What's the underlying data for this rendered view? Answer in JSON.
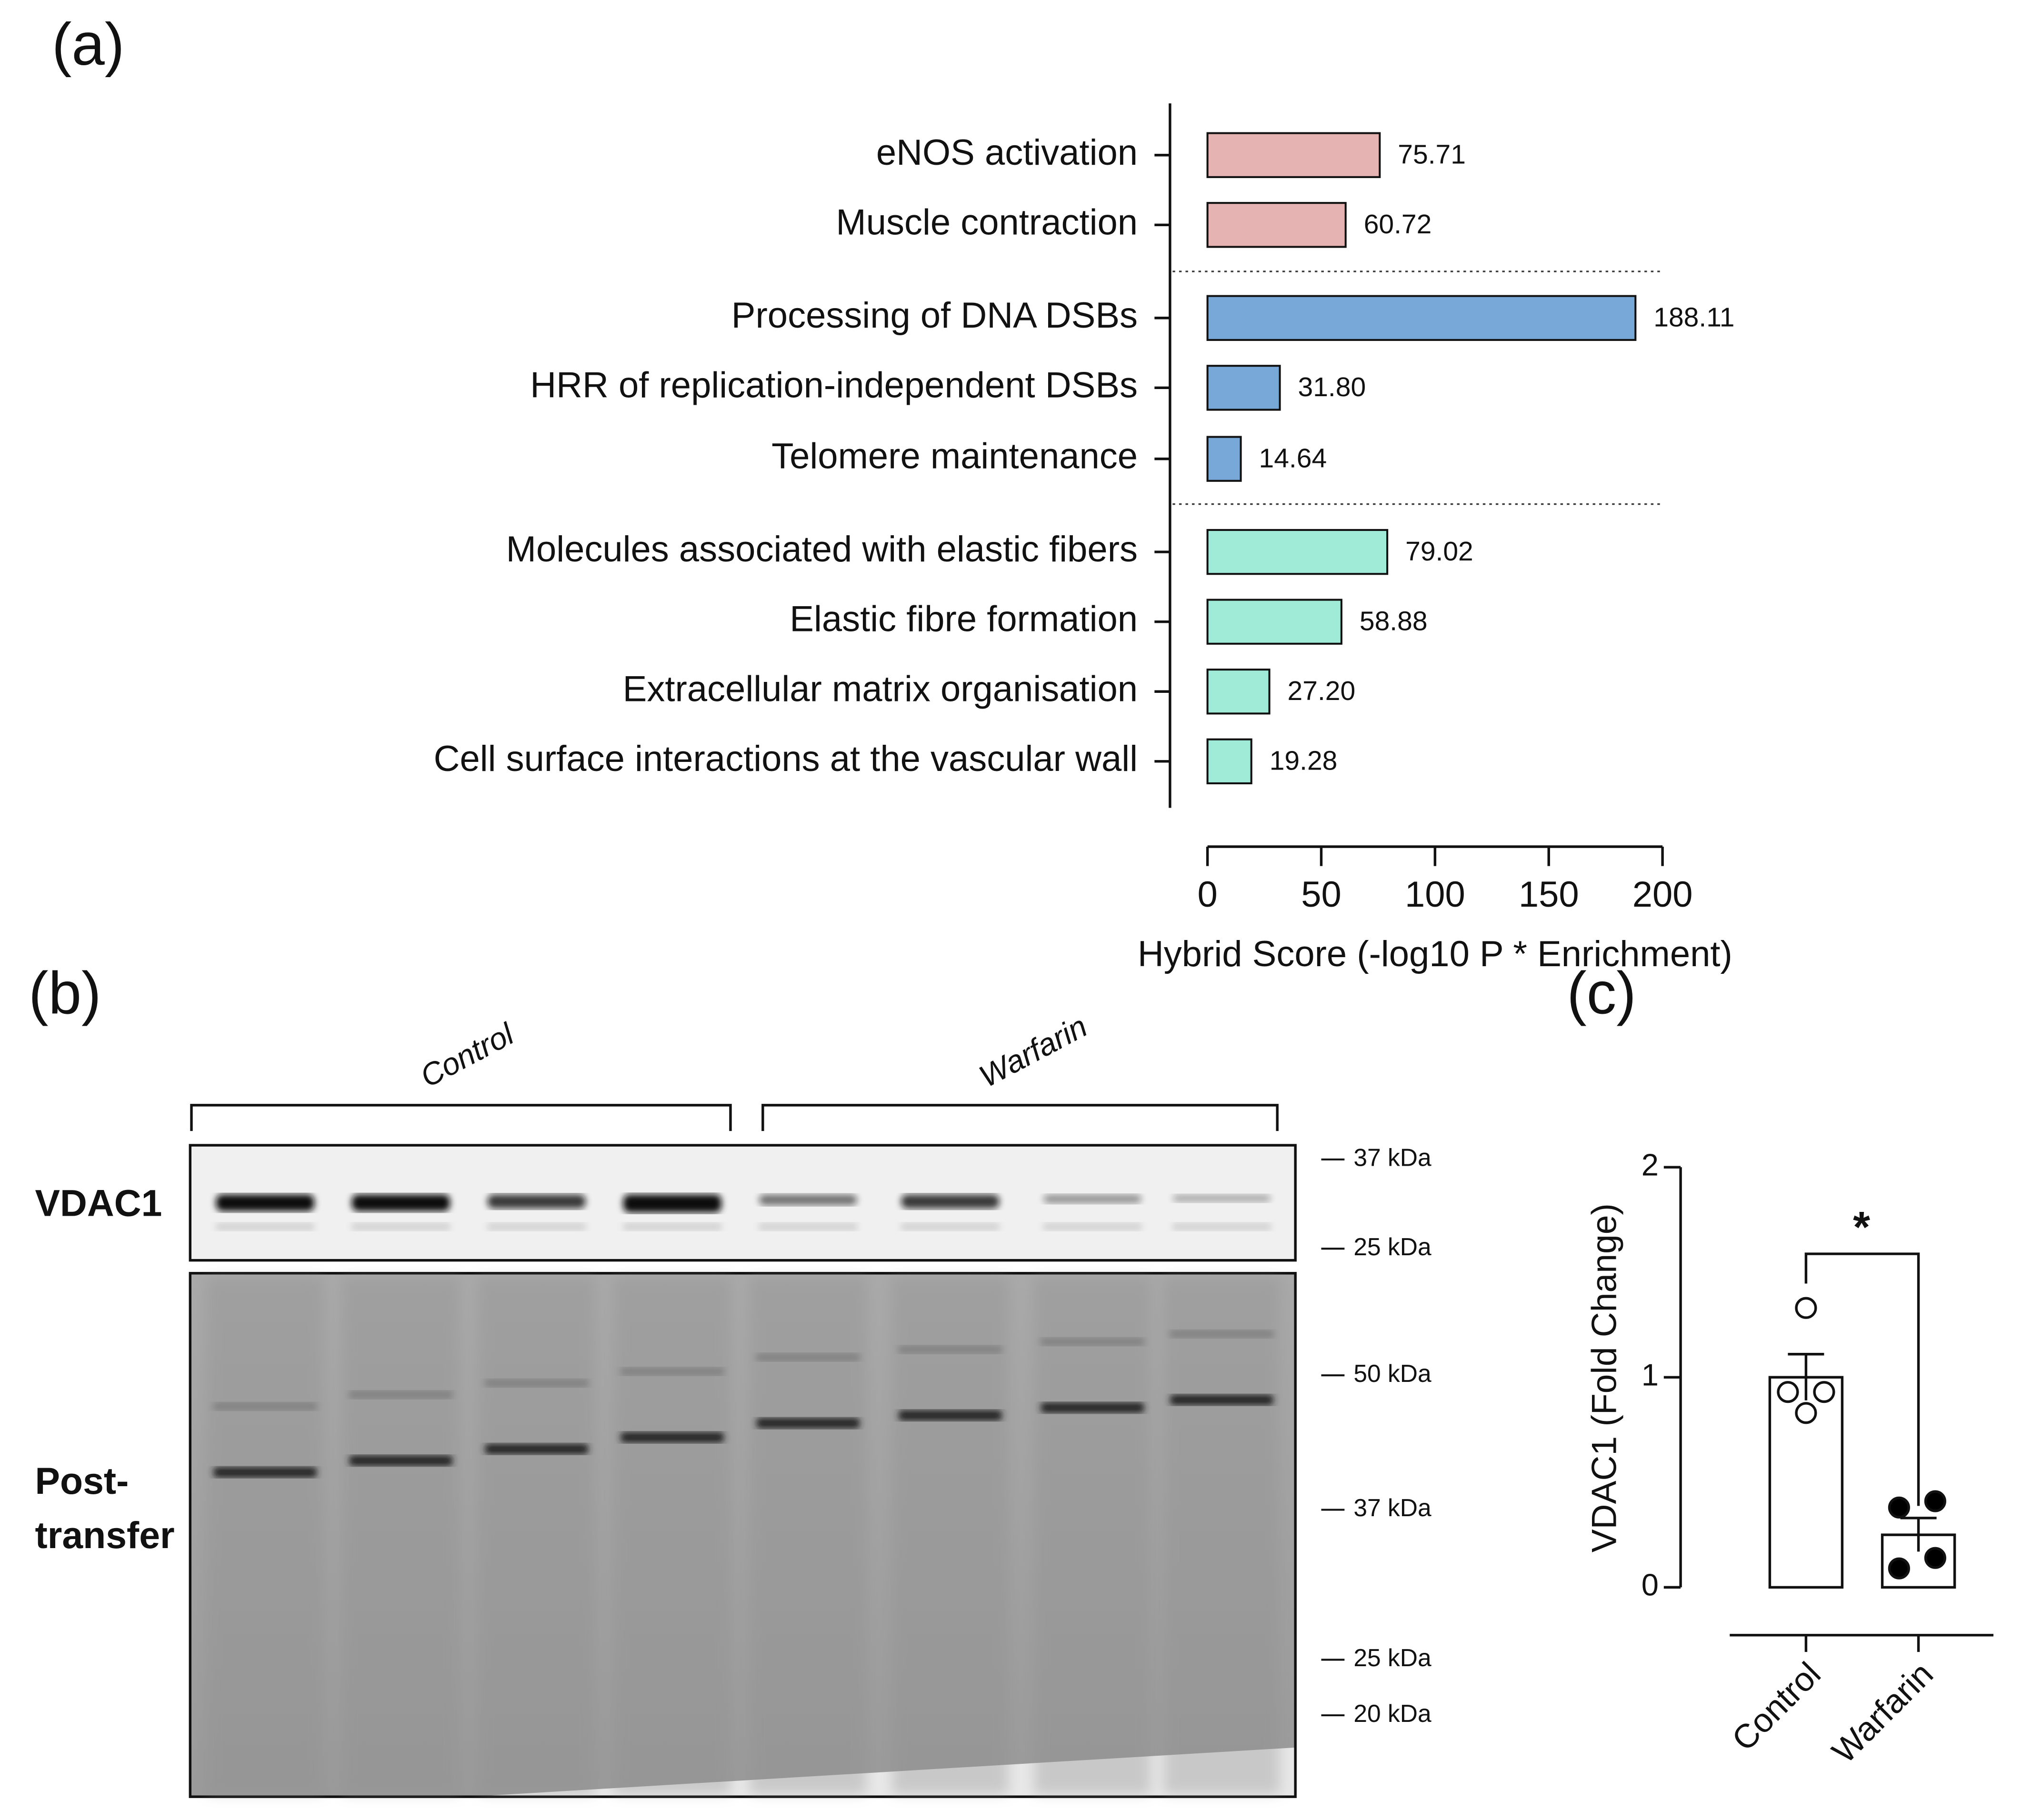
{
  "panel_labels": [
    "(a)",
    "(b)",
    "(c)"
  ],
  "blot": {
    "groups": [
      "Control",
      "Warfarin"
    ],
    "row_labels": [
      "VDAC1",
      "Post-",
      "transfer"
    ],
    "vdac1_markers": [
      "37 kDa",
      "25 kDa"
    ],
    "post_transfer_markers": [
      "50 kDa",
      "37 kDa",
      "25 kDa",
      "20 kDa"
    ]
  },
  "chart_data": [
    {
      "type": "hbar",
      "categories": [
        "eNOS activation",
        "Muscle contraction",
        "Processing of DNA DSBs",
        "HRR of replication-independent DSBs",
        "Telomere maintenance",
        "Molecules associated with elastic fibers",
        "Elastic fibre formation",
        "Extracellular matrix organisation",
        "Cell surface interactions at the vascular wall"
      ],
      "values": [
        75.71,
        60.72,
        188.11,
        31.8,
        14.64,
        79.02,
        58.88,
        27.2,
        19.28
      ],
      "value_labels": [
        "75.71",
        "60.72",
        "188.11",
        "31.80",
        "14.64",
        "79.02",
        "58.88",
        "27.20",
        "19.28"
      ],
      "colors": [
        "#e6b3b3",
        "#e6b3b3",
        "#78a8d8",
        "#78a8d8",
        "#78a8d8",
        "#a0ead8",
        "#a0ead8",
        "#a0ead8",
        "#a0ead8"
      ],
      "xlim": [
        0,
        200
      ],
      "xticks": [
        0,
        50,
        100,
        150,
        200
      ],
      "xlabel": "Hybrid Score (-log10 P * Enrichment)"
    },
    {
      "type": "bar",
      "categories": [
        "Control",
        "Warfarin"
      ],
      "values": [
        1.0,
        0.25
      ],
      "errors": [
        0.11,
        0.08
      ],
      "points": [
        [
          1.33,
          0.93,
          0.93,
          0.83
        ],
        [
          0.38,
          0.41,
          0.09,
          0.14
        ]
      ],
      "color": "#ffffff",
      "point_colors": [
        "#ffffff",
        "#000000"
      ],
      "ylim": [
        0,
        2
      ],
      "yticks": [
        0,
        1,
        2
      ],
      "ylabel": "VDAC1 (Fold Change)",
      "annotation": "*"
    }
  ]
}
